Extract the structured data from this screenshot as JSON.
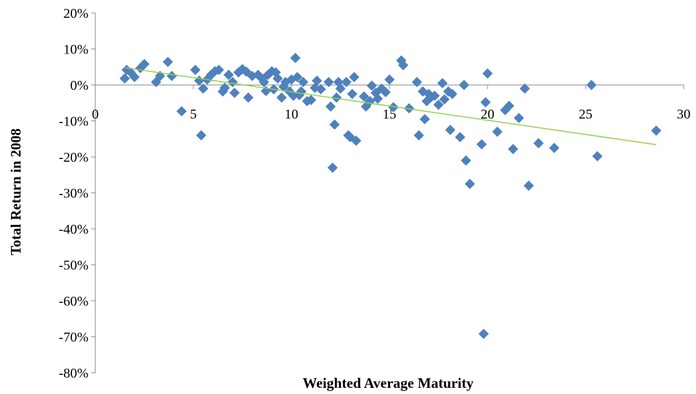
{
  "chart_data": {
    "type": "scatter",
    "xlabel": "Weighted Average Maturity",
    "ylabel": "Total Return in 2008",
    "xlim": [
      0,
      30
    ],
    "ylim": [
      -0.8,
      0.2
    ],
    "x_ticks": [
      {
        "value": 0,
        "label": "0"
      },
      {
        "value": 5,
        "label": "5"
      },
      {
        "value": 10,
        "label": "10"
      },
      {
        "value": 15,
        "label": "15"
      },
      {
        "value": 20,
        "label": "20"
      },
      {
        "value": 25,
        "label": "25"
      },
      {
        "value": 30,
        "label": "30"
      }
    ],
    "y_ticks": [
      {
        "value": 0.2,
        "label": "20%"
      },
      {
        "value": 0.1,
        "label": "10%"
      },
      {
        "value": 0.0,
        "label": "0%"
      },
      {
        "value": -0.1,
        "label": "-10%"
      },
      {
        "value": -0.2,
        "label": "-20%"
      },
      {
        "value": -0.3,
        "label": "-30%"
      },
      {
        "value": -0.4,
        "label": "-40%"
      },
      {
        "value": -0.5,
        "label": "-50%"
      },
      {
        "value": -0.6,
        "label": "-60%"
      },
      {
        "value": -0.7,
        "label": "-70%"
      },
      {
        "value": -0.8,
        "label": "-80%"
      }
    ],
    "grid": false,
    "legend": "none",
    "marker_color": "#4f81bd",
    "trendline_color": "#92d050",
    "trendline": {
      "x": [
        1.5,
        28.6
      ],
      "y": [
        0.048,
        -0.166
      ]
    },
    "series": [
      {
        "points": [
          [
            1.5,
            0.018
          ],
          [
            1.6,
            0.042
          ],
          [
            1.8,
            0.035
          ],
          [
            2.0,
            0.022
          ],
          [
            2.3,
            0.047
          ],
          [
            2.5,
            0.058
          ],
          [
            3.1,
            0.008
          ],
          [
            3.3,
            0.025
          ],
          [
            3.7,
            0.064
          ],
          [
            3.9,
            0.025
          ],
          [
            4.4,
            -0.073
          ],
          [
            5.1,
            0.042
          ],
          [
            5.3,
            0.012
          ],
          [
            5.4,
            -0.14
          ],
          [
            5.5,
            -0.01
          ],
          [
            5.7,
            0.015
          ],
          [
            5.9,
            0.028
          ],
          [
            6.1,
            0.038
          ],
          [
            6.3,
            0.042
          ],
          [
            6.5,
            -0.018
          ],
          [
            6.6,
            -0.008
          ],
          [
            6.8,
            0.028
          ],
          [
            7.0,
            0.008
          ],
          [
            7.1,
            -0.022
          ],
          [
            7.3,
            0.035
          ],
          [
            7.5,
            0.044
          ],
          [
            7.7,
            0.037
          ],
          [
            7.8,
            -0.035
          ],
          [
            8.0,
            0.025
          ],
          [
            8.3,
            0.028
          ],
          [
            8.5,
            0.018
          ],
          [
            8.6,
            0.008
          ],
          [
            8.7,
            -0.017
          ],
          [
            8.8,
            0.028
          ],
          [
            9.0,
            0.038
          ],
          [
            9.1,
            -0.012
          ],
          [
            9.2,
            0.035
          ],
          [
            9.3,
            0.018
          ],
          [
            9.5,
            -0.035
          ],
          [
            9.6,
            -0.005
          ],
          [
            9.7,
            0.008
          ],
          [
            9.9,
            -0.018
          ],
          [
            10.0,
            0.015
          ],
          [
            10.1,
            -0.03
          ],
          [
            10.2,
            0.075
          ],
          [
            10.3,
            0.022
          ],
          [
            10.4,
            -0.028
          ],
          [
            10.5,
            -0.018
          ],
          [
            10.6,
            0.008
          ],
          [
            10.8,
            -0.045
          ],
          [
            11.0,
            -0.042
          ],
          [
            11.2,
            -0.008
          ],
          [
            11.3,
            0.012
          ],
          [
            11.5,
            -0.012
          ],
          [
            11.9,
            0.008
          ],
          [
            12.0,
            -0.06
          ],
          [
            12.1,
            -0.23
          ],
          [
            12.2,
            -0.11
          ],
          [
            12.3,
            -0.035
          ],
          [
            12.4,
            0.008
          ],
          [
            12.5,
            -0.01
          ],
          [
            12.8,
            0.008
          ],
          [
            12.9,
            -0.14
          ],
          [
            13.0,
            -0.145
          ],
          [
            13.1,
            -0.025
          ],
          [
            13.2,
            0.022
          ],
          [
            13.3,
            -0.155
          ],
          [
            13.7,
            -0.032
          ],
          [
            13.8,
            -0.06
          ],
          [
            14.0,
            -0.045
          ],
          [
            14.1,
            -0.002
          ],
          [
            14.3,
            -0.022
          ],
          [
            14.4,
            -0.038
          ],
          [
            14.6,
            -0.01
          ],
          [
            14.8,
            -0.02
          ],
          [
            15.0,
            0.015
          ],
          [
            15.2,
            -0.062
          ],
          [
            15.6,
            0.068
          ],
          [
            15.7,
            0.055
          ],
          [
            16.0,
            -0.065
          ],
          [
            16.4,
            0.008
          ],
          [
            16.5,
            -0.14
          ],
          [
            16.7,
            -0.018
          ],
          [
            16.8,
            -0.095
          ],
          [
            16.9,
            -0.045
          ],
          [
            17.0,
            -0.025
          ],
          [
            17.1,
            -0.035
          ],
          [
            17.3,
            -0.03
          ],
          [
            17.5,
            -0.055
          ],
          [
            17.7,
            0.005
          ],
          [
            17.8,
            -0.04
          ],
          [
            18.0,
            -0.018
          ],
          [
            18.1,
            -0.125
          ],
          [
            18.2,
            -0.025
          ],
          [
            18.6,
            -0.145
          ],
          [
            18.8,
            0.0
          ],
          [
            18.9,
            -0.21
          ],
          [
            19.1,
            -0.275
          ],
          [
            19.7,
            -0.165
          ],
          [
            19.8,
            -0.692
          ],
          [
            19.9,
            -0.048
          ],
          [
            20.0,
            0.032
          ],
          [
            20.5,
            -0.13
          ],
          [
            20.9,
            -0.07
          ],
          [
            21.1,
            -0.058
          ],
          [
            21.3,
            -0.178
          ],
          [
            21.6,
            -0.092
          ],
          [
            21.9,
            -0.01
          ],
          [
            22.1,
            -0.28
          ],
          [
            22.6,
            -0.162
          ],
          [
            23.4,
            -0.175
          ],
          [
            25.3,
            0.0
          ],
          [
            25.6,
            -0.198
          ],
          [
            28.6,
            -0.127
          ]
        ]
      }
    ]
  }
}
